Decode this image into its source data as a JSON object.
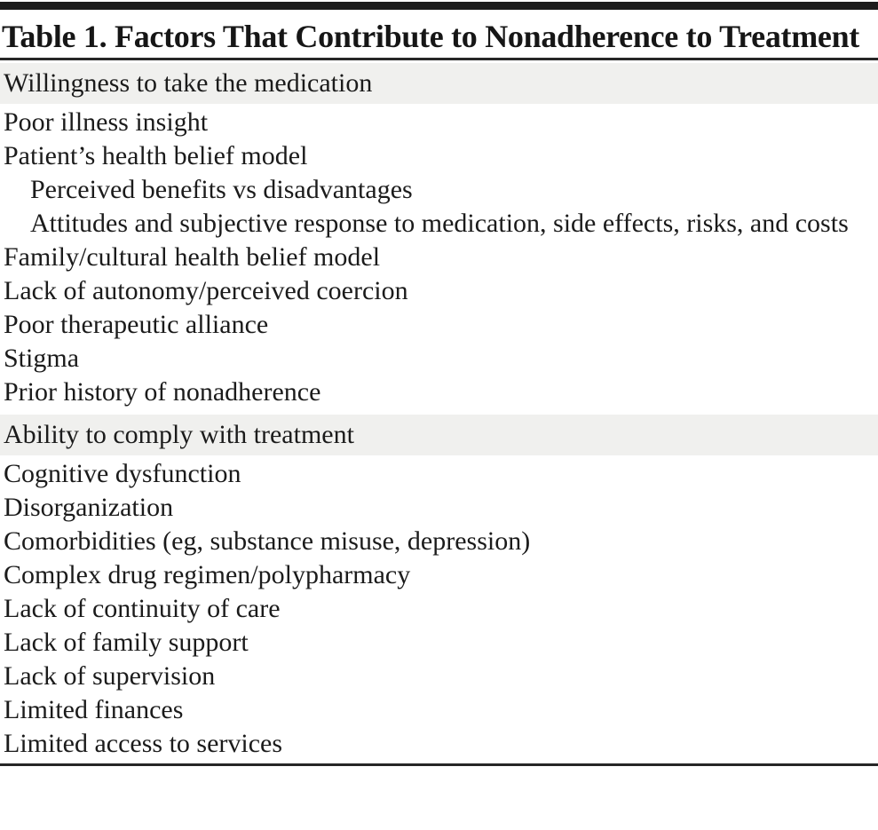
{
  "table": {
    "title": "Table 1. Factors That Contribute to Nonadherence to Treatment",
    "sections": [
      {
        "header": "Willingness to take the medication",
        "rows": [
          {
            "text": "Poor illness insight",
            "indent": 0
          },
          {
            "text": "Patient’s health belief model",
            "indent": 0
          },
          {
            "text": "Perceived benefits vs disadvantages",
            "indent": 1
          },
          {
            "text": "Attitudes and subjective response to medication, side effects, risks, and costs",
            "indent": 1
          },
          {
            "text": "Family/cultural health belief model",
            "indent": 0
          },
          {
            "text": "Lack of autonomy/perceived coercion",
            "indent": 0
          },
          {
            "text": "Poor therapeutic alliance",
            "indent": 0
          },
          {
            "text": "Stigma",
            "indent": 0
          },
          {
            "text": "Prior history of nonadherence",
            "indent": 0
          }
        ]
      },
      {
        "header": "Ability to comply with treatment",
        "rows": [
          {
            "text": "Cognitive dysfunction",
            "indent": 0
          },
          {
            "text": "Disorganization",
            "indent": 0
          },
          {
            "text": "Comorbidities (eg, substance misuse, depression)",
            "indent": 0
          },
          {
            "text": "Complex drug regimen/polypharmacy",
            "indent": 0
          },
          {
            "text": "Lack of continuity of care",
            "indent": 0
          },
          {
            "text": "Lack of family support",
            "indent": 0
          },
          {
            "text": "Lack of supervision",
            "indent": 0
          },
          {
            "text": "Limited finances",
            "indent": 0
          },
          {
            "text": "Limited access to services",
            "indent": 0
          }
        ]
      }
    ],
    "colors": {
      "band_bg": "#f0f0ee",
      "rule": "#262626",
      "top_bar": "#1c1c1c",
      "text": "#1b1b1b"
    }
  }
}
